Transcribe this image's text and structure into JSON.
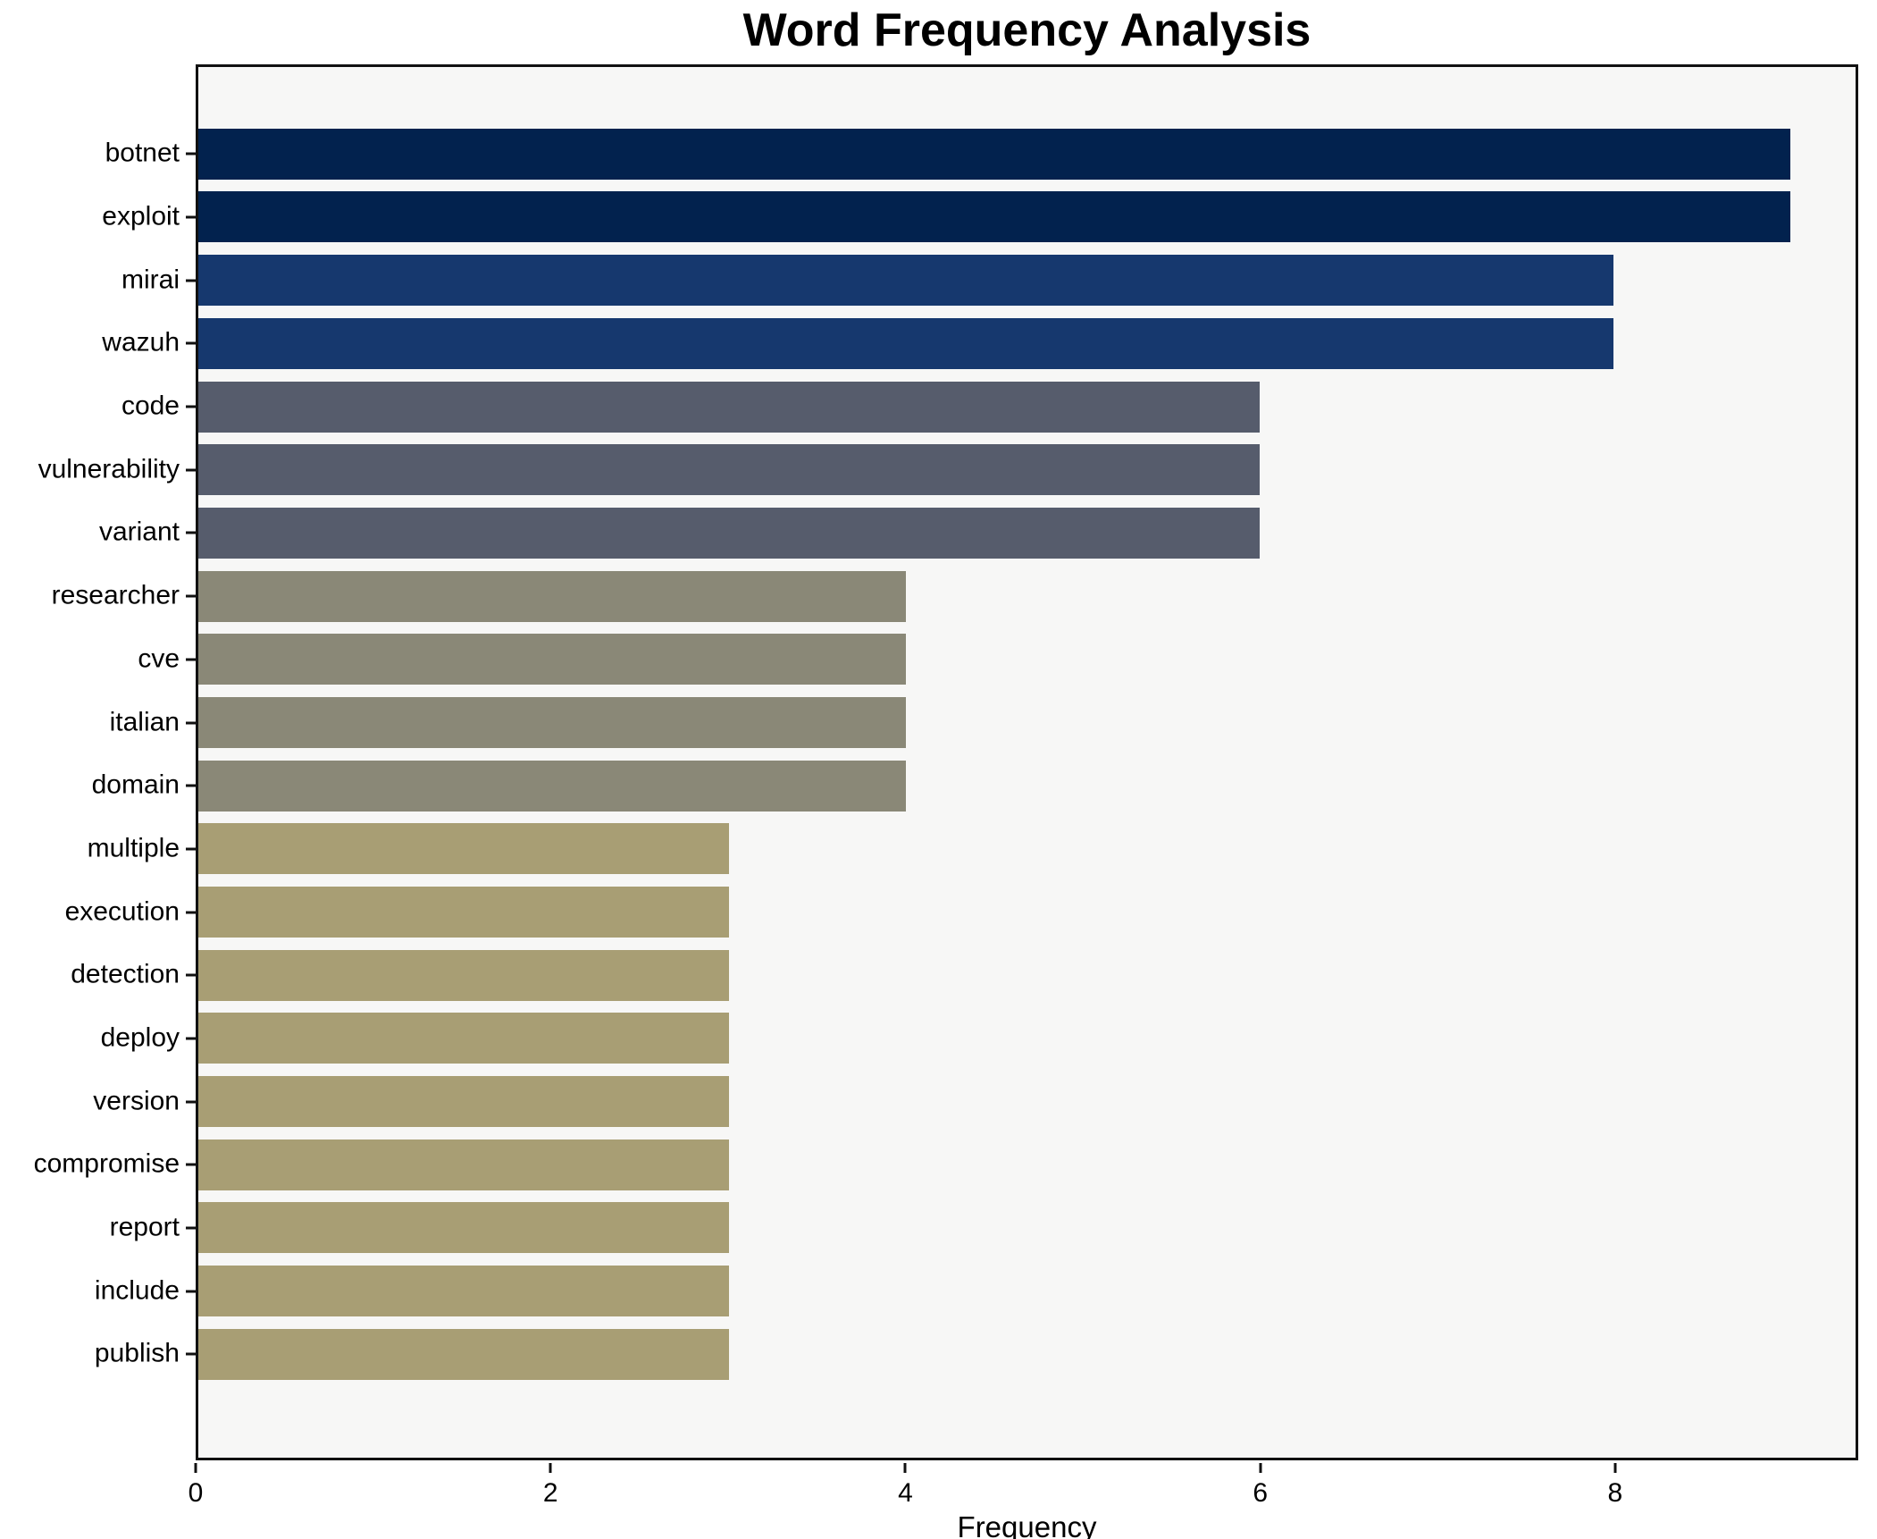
{
  "chart_data": {
    "type": "bar",
    "orientation": "horizontal",
    "title": "Word Frequency Analysis",
    "xlabel": "Frequency",
    "ylabel": "",
    "categories": [
      "botnet",
      "exploit",
      "mirai",
      "wazuh",
      "code",
      "vulnerability",
      "variant",
      "researcher",
      "cve",
      "italian",
      "domain",
      "multiple",
      "execution",
      "detection",
      "deploy",
      "version",
      "compromise",
      "report",
      "include",
      "publish"
    ],
    "values": [
      9,
      9,
      8,
      8,
      6,
      6,
      6,
      4,
      4,
      4,
      4,
      3,
      3,
      3,
      3,
      3,
      3,
      3,
      3,
      3
    ],
    "bar_colors": [
      "#02224e",
      "#02224e",
      "#16386e",
      "#16386e",
      "#565c6c",
      "#565c6c",
      "#565c6c",
      "#8a8877",
      "#8a8877",
      "#8a8877",
      "#8a8877",
      "#a89e74",
      "#a89e74",
      "#a89e74",
      "#a89e74",
      "#a89e74",
      "#a89e74",
      "#a89e74",
      "#a89e74",
      "#a89e74"
    ],
    "xlim": [
      0,
      9.37
    ],
    "x_ticks": [
      0,
      2,
      4,
      6,
      8
    ],
    "grid": false,
    "legend": "none",
    "plot_background": "#f7f7f6",
    "spine_color": "#111111"
  }
}
